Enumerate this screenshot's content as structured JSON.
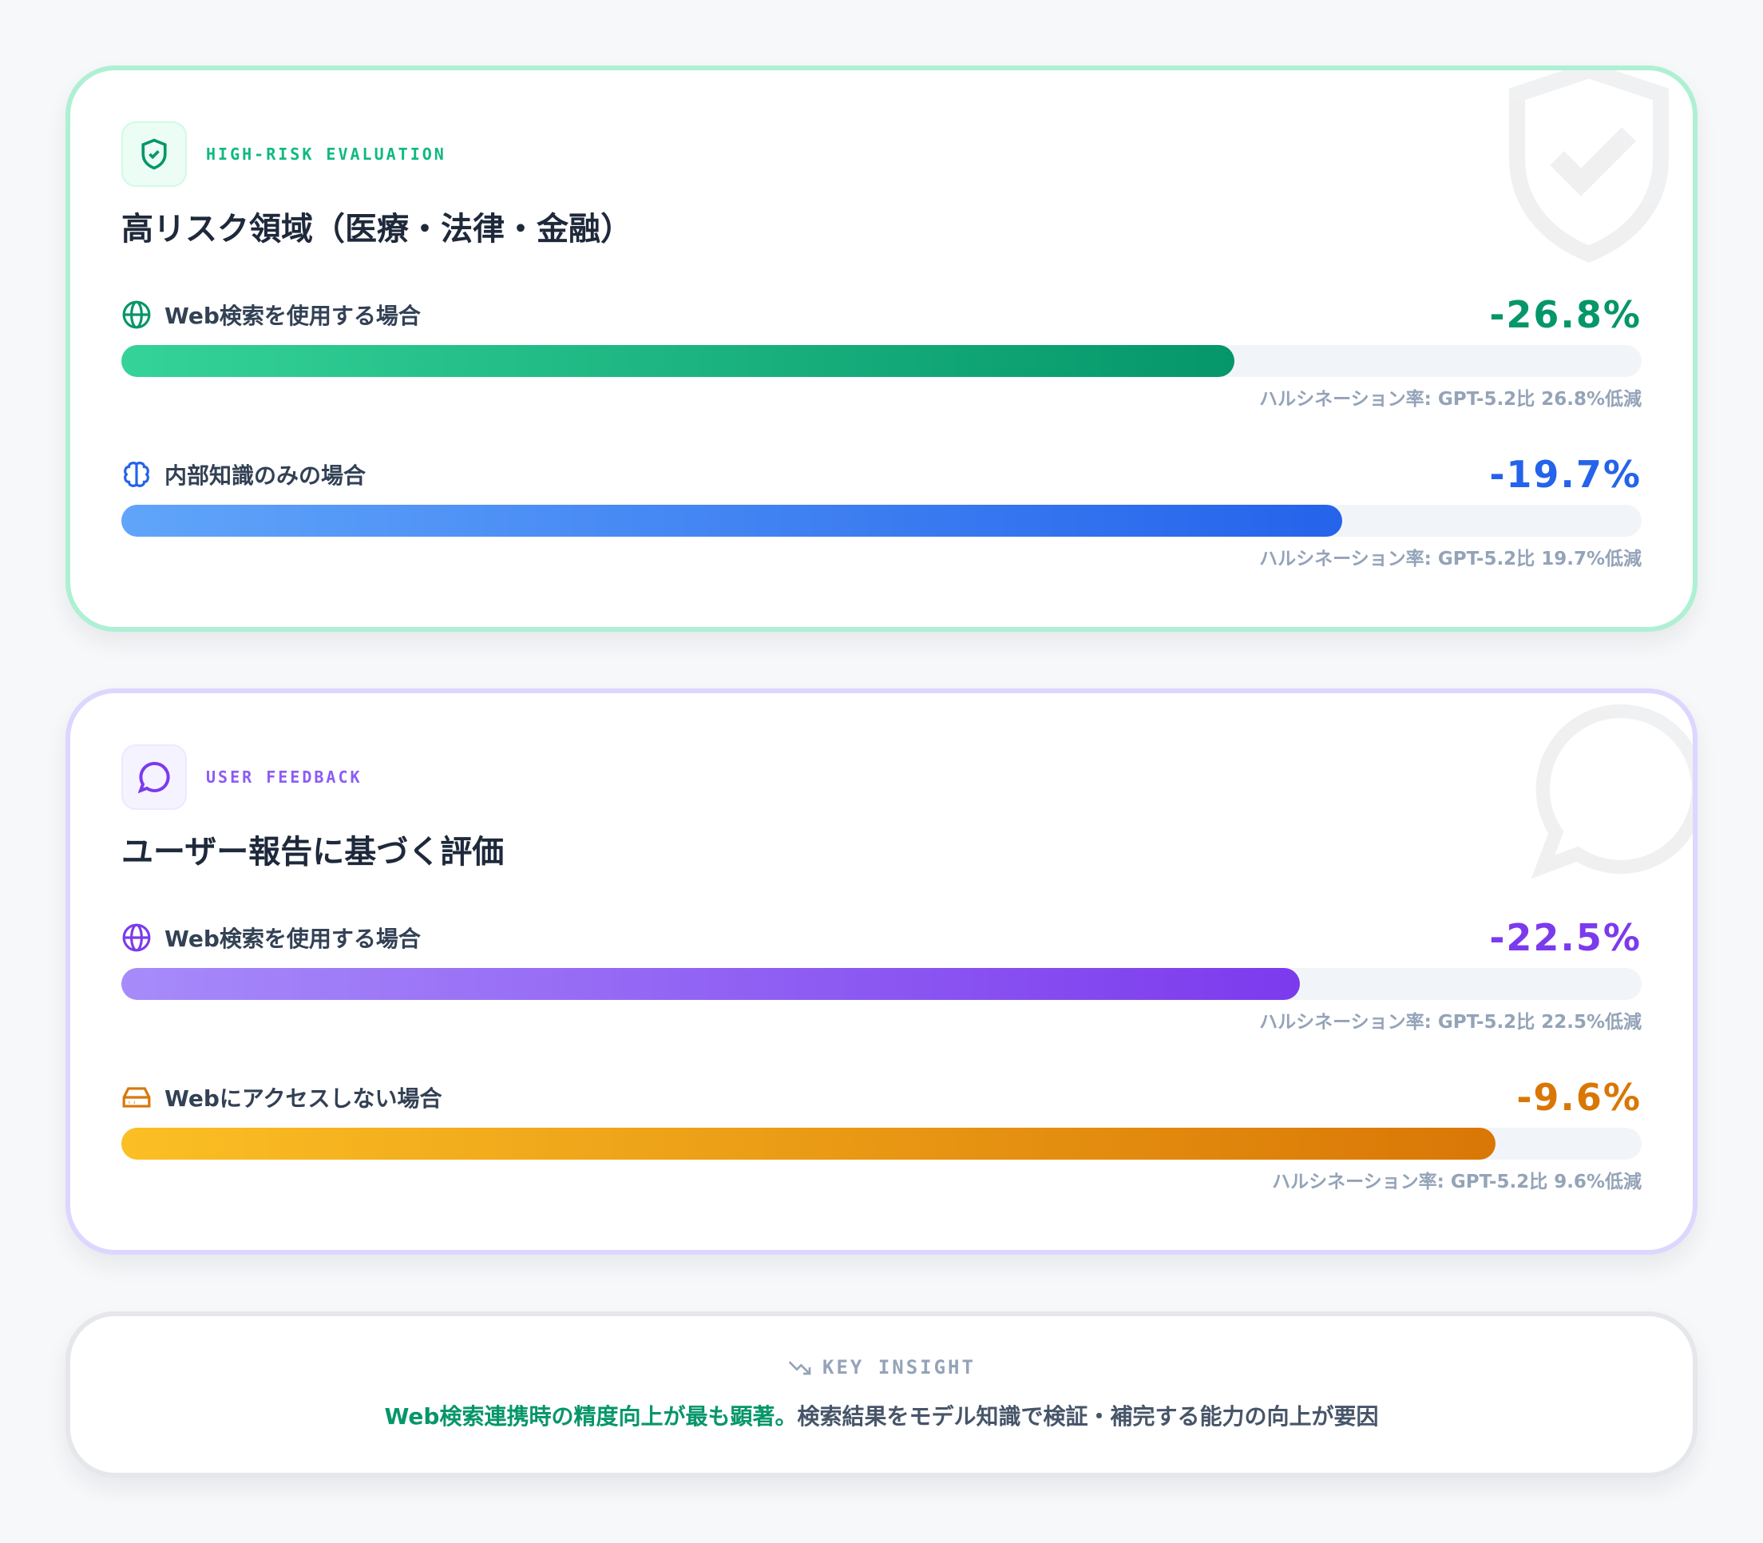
{
  "cards": [
    {
      "tag": "HIGH-RISK EVALUATION",
      "title": "高リスク領域（医療・法律・金融）",
      "accent": "#059669",
      "rows": [
        {
          "icon": "globe-icon",
          "label": "Web検索を使用する場合",
          "value": "-26.8%",
          "reduction": 26.8,
          "caption": "ハルシネーション率: GPT-5.2比 26.8%低減",
          "color": "#059669",
          "gradient": [
            "#34d399",
            "#059669"
          ]
        },
        {
          "icon": "brain-icon",
          "label": "内部知識のみの場合",
          "value": "-19.7%",
          "reduction": 19.7,
          "caption": "ハルシネーション率: GPT-5.2比 19.7%低減",
          "color": "#2563eb",
          "gradient": [
            "#60a5fa",
            "#2563eb"
          ]
        }
      ]
    },
    {
      "tag": "USER FEEDBACK",
      "title": "ユーザー報告に基づく評価",
      "accent": "#7c3aed",
      "rows": [
        {
          "icon": "globe-icon",
          "label": "Web検索を使用する場合",
          "value": "-22.5%",
          "reduction": 22.5,
          "caption": "ハルシネーション率: GPT-5.2比 22.5%低減",
          "color": "#7c3aed",
          "gradient": [
            "#a78bfa",
            "#7c3aed"
          ]
        },
        {
          "icon": "hard-drive-icon",
          "label": "Webにアクセスしない場合",
          "value": "-9.6%",
          "reduction": 9.6,
          "caption": "ハルシネーション率: GPT-5.2比 9.6%低減",
          "color": "#d97706",
          "gradient": [
            "#fbbf24",
            "#d97706"
          ]
        }
      ]
    }
  ],
  "insight": {
    "tag": "KEY INSIGHT",
    "highlight": "Web検索連携時の精度向上が最も顕著。",
    "text": "検索結果をモデル知識で検証・補完する能力の向上が要因"
  }
}
